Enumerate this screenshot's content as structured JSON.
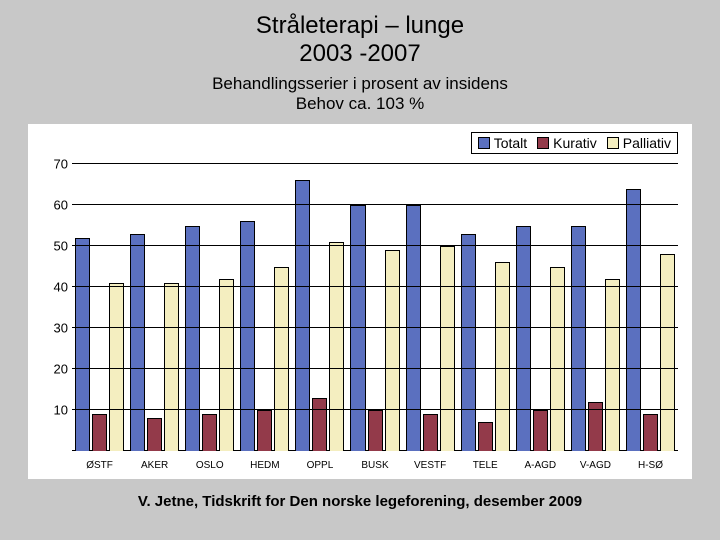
{
  "title": {
    "line1": "Stråleterapi – lunge",
    "line2": "2003 -2007",
    "fontsize": 24
  },
  "subtitle": {
    "line1": "Behandlingsserier i prosent av insidens",
    "line2": "Behov ca. 103 %",
    "fontsize": 17
  },
  "footer": "V. Jetne, Tidskrift for Den norske legeforening, desember 2009",
  "chart": {
    "type": "bar",
    "background_color": "#ffffff",
    "page_background": "#c8c8c8",
    "ylim": [
      0,
      70
    ],
    "ytick_step": 10,
    "yticks": [
      10,
      20,
      30,
      40,
      50,
      60,
      70
    ],
    "grid_color": "#000000",
    "legend_border": "#000000",
    "series": [
      {
        "name": "Totalt",
        "color": "#5b70bf"
      },
      {
        "name": "Kurativ",
        "color": "#933a4a"
      },
      {
        "name": "Palliativ",
        "color": "#f4eec0"
      }
    ],
    "categories": [
      "ØSTF",
      "AKER",
      "OSLO",
      "HEDM",
      "OPPL",
      "BUSK",
      "VESTF",
      "TELE",
      "A-AGD",
      "V-AGD",
      "H-SØ"
    ],
    "data": {
      "Totalt": [
        52,
        53,
        55,
        56,
        66,
        60,
        60,
        53,
        55,
        55,
        64
      ],
      "Kurativ": [
        9,
        8,
        9,
        10,
        13,
        10,
        9,
        7,
        10,
        12,
        9
      ],
      "Palliativ": [
        41,
        41,
        42,
        45,
        51,
        49,
        50,
        46,
        45,
        42,
        48
      ]
    },
    "label_fontsize": 13,
    "xlabel_fontsize": 10
  }
}
